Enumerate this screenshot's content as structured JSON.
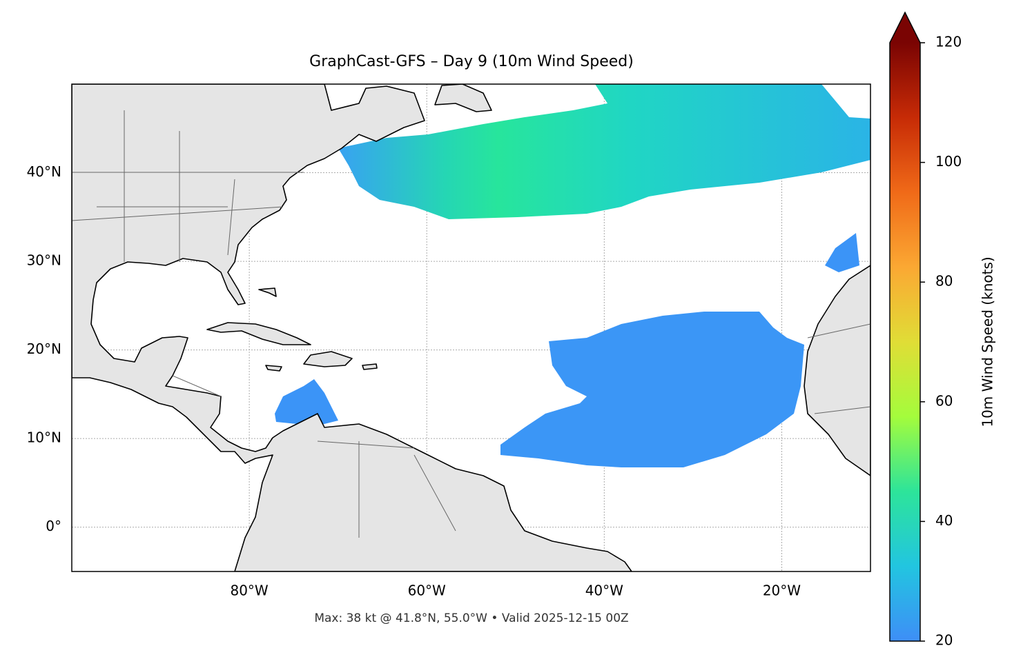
{
  "chart_data": {
    "type": "map",
    "title": "GraphCast-GFS – Day 9 (10m Wind Speed)",
    "footnote": "Max: 38 kt @ 41.8°N, 55.0°W • Valid 2025-12-15 00Z",
    "xlim": [
      -100,
      -10
    ],
    "ylim": [
      -5,
      50
    ],
    "xticks": [
      {
        "value": -80,
        "label": "80°W"
      },
      {
        "value": -60,
        "label": "60°W"
      },
      {
        "value": -40,
        "label": "40°W"
      },
      {
        "value": -20,
        "label": "20°W"
      }
    ],
    "yticks": [
      {
        "value": 0,
        "label": "0°"
      },
      {
        "value": 10,
        "label": "10°N"
      },
      {
        "value": 20,
        "label": "20°N"
      },
      {
        "value": 30,
        "label": "30°N"
      },
      {
        "value": 40,
        "label": "40°N"
      }
    ],
    "grid": true,
    "colorbar": {
      "label": "10m Wind Speed (knots)",
      "clim": [
        20,
        120
      ],
      "ticks": [
        20,
        40,
        60,
        80,
        100,
        120
      ],
      "colormap": [
        "#3e8ef7",
        "#22c5e0",
        "#2de49a",
        "#a4fc3c",
        "#e0dd36",
        "#fba833",
        "#f06a18",
        "#c72b06",
        "#7a0403"
      ]
    }
  }
}
